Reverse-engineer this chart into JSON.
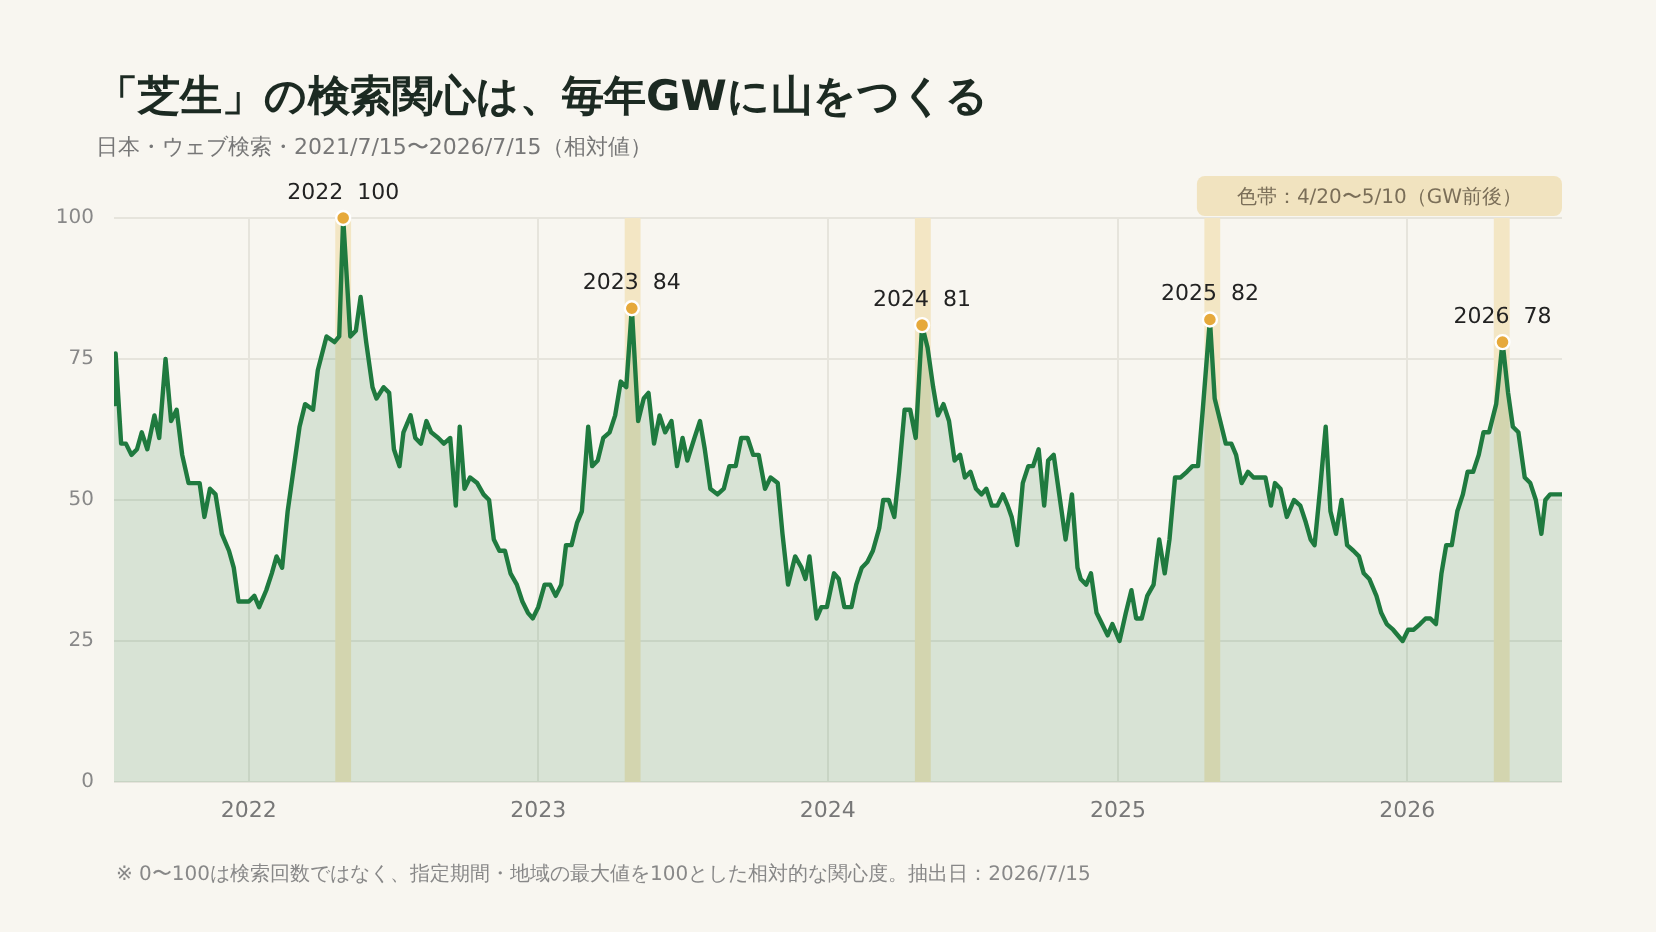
{
  "chart_data": {
    "type": "area",
    "title": "「芝生」の検索関心は、毎年GWに山をつくる",
    "subtitle": "日本・ウェブ検索・2021/7/15〜2026/7/15（相対値）",
    "x": [
      "2021-07-15",
      "2021-07-17",
      "2021-07-24",
      "2021-07-30",
      "2021-08-06",
      "2021-08-13",
      "2021-08-19",
      "2021-08-26",
      "2021-09-04",
      "2021-09-10",
      "2021-09-18",
      "2021-09-25",
      "2021-10-02",
      "2021-10-09",
      "2021-10-17",
      "2021-10-24",
      "2021-10-31",
      "2021-11-06",
      "2021-11-13",
      "2021-11-20",
      "2021-11-28",
      "2021-12-07",
      "2021-12-13",
      "2021-12-19",
      "2022-01-01",
      "2022-01-08",
      "2022-01-14",
      "2022-01-23",
      "2022-01-30",
      "2022-02-05",
      "2022-02-12",
      "2022-02-19",
      "2022-02-27",
      "2022-03-06",
      "2022-03-13",
      "2022-03-23",
      "2022-03-29",
      "2022-04-09",
      "2022-04-19",
      "2022-04-25",
      "2022-04-30",
      "2022-05-09",
      "2022-05-16",
      "2022-05-22",
      "2022-05-29",
      "2022-06-06",
      "2022-06-11",
      "2022-06-20",
      "2022-06-27",
      "2022-07-03",
      "2022-07-10",
      "2022-07-15",
      "2022-07-24",
      "2022-07-30",
      "2022-08-06",
      "2022-08-13",
      "2022-08-19",
      "2022-08-28",
      "2022-09-04",
      "2022-09-12",
      "2022-09-19",
      "2022-09-24",
      "2022-09-30",
      "2022-10-07",
      "2022-10-16",
      "2022-10-24",
      "2022-10-31",
      "2022-11-06",
      "2022-11-13",
      "2022-11-20",
      "2022-11-27",
      "2022-12-05",
      "2022-12-12",
      "2022-12-19",
      "2022-12-25",
      "2023-01-01",
      "2023-01-09",
      "2023-01-16",
      "2023-01-23",
      "2023-01-30",
      "2023-02-05",
      "2023-02-12",
      "2023-02-19",
      "2023-02-25",
      "2023-03-05",
      "2023-03-10",
      "2023-03-17",
      "2023-03-24",
      "2023-04-01",
      "2023-04-08",
      "2023-04-15",
      "2023-04-22",
      "2023-04-29",
      "2023-05-07",
      "2023-05-14",
      "2023-05-20",
      "2023-05-27",
      "2023-06-03",
      "2023-06-10",
      "2023-06-18",
      "2023-06-25",
      "2023-07-02",
      "2023-07-08",
      "2023-07-17",
      "2023-07-24",
      "2023-07-30",
      "2023-08-06",
      "2023-08-15",
      "2023-08-23",
      "2023-08-30",
      "2023-09-07",
      "2023-09-14",
      "2023-09-22",
      "2023-09-29",
      "2023-10-06",
      "2023-10-14",
      "2023-10-21",
      "2023-10-30",
      "2023-11-05",
      "2023-11-12",
      "2023-11-21",
      "2023-11-29",
      "2023-12-04",
      "2023-12-09",
      "2023-12-18",
      "2023-12-24",
      "2023-12-31",
      "2024-01-09",
      "2024-01-15",
      "2024-01-22",
      "2024-01-31",
      "2024-02-06",
      "2024-02-13",
      "2024-02-20",
      "2024-02-27",
      "2024-03-06",
      "2024-03-11",
      "2024-03-18",
      "2024-03-25",
      "2024-03-31",
      "2024-04-07",
      "2024-04-14",
      "2024-04-21",
      "2024-04-29",
      "2024-05-06",
      "2024-05-13",
      "2024-05-19",
      "2024-05-26",
      "2024-06-02",
      "2024-06-09",
      "2024-06-16",
      "2024-06-22",
      "2024-06-29",
      "2024-07-06",
      "2024-07-13",
      "2024-07-19",
      "2024-07-26",
      "2024-08-02",
      "2024-08-09",
      "2024-08-15",
      "2024-08-20",
      "2024-08-27",
      "2024-09-03",
      "2024-09-10",
      "2024-09-16",
      "2024-09-23",
      "2024-09-30",
      "2024-10-05",
      "2024-10-12",
      "2024-10-19",
      "2024-10-27",
      "2024-11-04",
      "2024-11-11",
      "2024-11-15",
      "2024-11-22",
      "2024-11-28",
      "2024-12-05",
      "2024-12-12",
      "2024-12-19",
      "2024-12-25",
      "2025-01-03",
      "2025-01-11",
      "2025-01-18",
      "2025-01-24",
      "2025-01-31",
      "2025-02-07",
      "2025-02-15",
      "2025-02-22",
      "2025-03-01",
      "2025-03-07",
      "2025-03-14",
      "2025-03-21",
      "2025-03-29",
      "2025-04-05",
      "2025-04-12",
      "2025-04-18",
      "2025-04-27",
      "2025-05-03",
      "2025-05-10",
      "2025-05-17",
      "2025-05-24",
      "2025-05-30",
      "2025-06-06",
      "2025-06-14",
      "2025-06-21",
      "2025-06-30",
      "2025-07-06",
      "2025-07-13",
      "2025-07-18",
      "2025-07-25",
      "2025-08-02",
      "2025-08-11",
      "2025-08-19",
      "2025-08-26",
      "2025-09-01",
      "2025-09-06",
      "2025-09-13",
      "2025-09-20",
      "2025-09-26",
      "2025-10-03",
      "2025-10-10",
      "2025-10-17",
      "2025-10-25",
      "2025-11-01",
      "2025-11-07",
      "2025-11-14",
      "2025-11-23",
      "2025-11-29",
      "2025-12-06",
      "2025-12-14",
      "2025-12-26",
      "2026-01-02",
      "2026-01-09",
      "2026-01-17",
      "2026-01-24",
      "2026-01-30",
      "2026-02-06",
      "2026-02-13",
      "2026-02-19",
      "2026-02-26",
      "2026-03-05",
      "2026-03-12",
      "2026-03-18",
      "2026-03-25",
      "2026-04-01",
      "2026-04-07",
      "2026-04-14",
      "2026-04-23",
      "2026-05-01",
      "2026-05-08",
      "2026-05-14",
      "2026-05-21",
      "2026-05-29",
      "2026-06-05",
      "2026-06-12",
      "2026-06-19",
      "2026-06-24",
      "2026-06-30",
      "2026-07-09",
      "2026-07-15"
    ],
    "series": [
      {
        "color": "#1f7a3f",
        "values": [
          67,
          76,
          60,
          60,
          58,
          59,
          62,
          59,
          65,
          61,
          75,
          64,
          66,
          58,
          53,
          53,
          53,
          47,
          52,
          51,
          44,
          41,
          38,
          32,
          32,
          33,
          31,
          34,
          37,
          40,
          38,
          48,
          56,
          63,
          67,
          66,
          73,
          79,
          78,
          79,
          100,
          79,
          80,
          86,
          78,
          70,
          68,
          70,
          69,
          59,
          56,
          62,
          65,
          61,
          60,
          64,
          62,
          61,
          60,
          61,
          49,
          63,
          52,
          54,
          53,
          51,
          50,
          43,
          41,
          41,
          37,
          35,
          32,
          30,
          29,
          31,
          35,
          35,
          33,
          35,
          42,
          42,
          46,
          48,
          63,
          56,
          57,
          61,
          62,
          65,
          71,
          70,
          84,
          64,
          68,
          69,
          60,
          65,
          62,
          64,
          56,
          61,
          57,
          61,
          64,
          59,
          52,
          51,
          52,
          56,
          56,
          61,
          61,
          58,
          58,
          52,
          54,
          53,
          44,
          35,
          40,
          38,
          36,
          40,
          29,
          31,
          31,
          37,
          36,
          31,
          31,
          35,
          38,
          39,
          41,
          45,
          50,
          50,
          47,
          55,
          66,
          66,
          61,
          81,
          77,
          70,
          65,
          67,
          64,
          57,
          58,
          54,
          55,
          52,
          51,
          52,
          49,
          49,
          51,
          49,
          47,
          42,
          53,
          56,
          56,
          59,
          49,
          57,
          58,
          51,
          43,
          51,
          38,
          36,
          35,
          37,
          30,
          28,
          26,
          28,
          25,
          30,
          34,
          29,
          29,
          33,
          35,
          43,
          37,
          43,
          54,
          54,
          55,
          56,
          56,
          66,
          82,
          68,
          64,
          60,
          60,
          58,
          53,
          55,
          54,
          54,
          54,
          49,
          53,
          52,
          47,
          50,
          49,
          46,
          43,
          42,
          52,
          63,
          48,
          44,
          50,
          42,
          41,
          40,
          37,
          36,
          33,
          30,
          28,
          27,
          25,
          27,
          27,
          28,
          29,
          29,
          28,
          37,
          42,
          42,
          48,
          51,
          55,
          55,
          58,
          62,
          62,
          67,
          78,
          69,
          63,
          62,
          54,
          53,
          50,
          44,
          50,
          51,
          51,
          51
        ]
      }
    ],
    "xlim": [
      "2021-07-15",
      "2026-07-15"
    ],
    "xticks": [
      "2022",
      "2023",
      "2024",
      "2025",
      "2026"
    ],
    "ylim": [
      0,
      100
    ],
    "yticks": [
      0,
      25,
      50,
      75,
      100
    ],
    "grid": true,
    "legend": false,
    "bands": [
      {
        "axis": "x",
        "from": "2022-04-20",
        "to": "2022-05-10",
        "color": "#f3e6c4"
      },
      {
        "axis": "x",
        "from": "2023-04-20",
        "to": "2023-05-10",
        "color": "#f3e6c4"
      },
      {
        "axis": "x",
        "from": "2024-04-20",
        "to": "2024-05-10",
        "color": "#f3e6c4"
      },
      {
        "axis": "x",
        "from": "2025-04-20",
        "to": "2025-05-10",
        "color": "#f3e6c4"
      },
      {
        "axis": "x",
        "from": "2026-04-20",
        "to": "2026-05-10",
        "color": "#f3e6c4"
      }
    ],
    "annotations": [
      {
        "text": "2022  100",
        "x": "2022-04-30",
        "y": 100
      },
      {
        "text": "2023  84",
        "x": "2023-04-29",
        "y": 84
      },
      {
        "text": "2024  81",
        "x": "2024-04-29",
        "y": 81
      },
      {
        "text": "2025  82",
        "x": "2025-04-27",
        "y": 82
      },
      {
        "text": "2026  78",
        "x": "2026-05-01",
        "y": 78
      },
      "色帯：4/20〜5/10（GW前後）",
      "※ 0〜100は検索回数ではなく、指定期間・地域の最大値を100とした相対的な関心度。抽出日：2026/7/15"
    ]
  }
}
